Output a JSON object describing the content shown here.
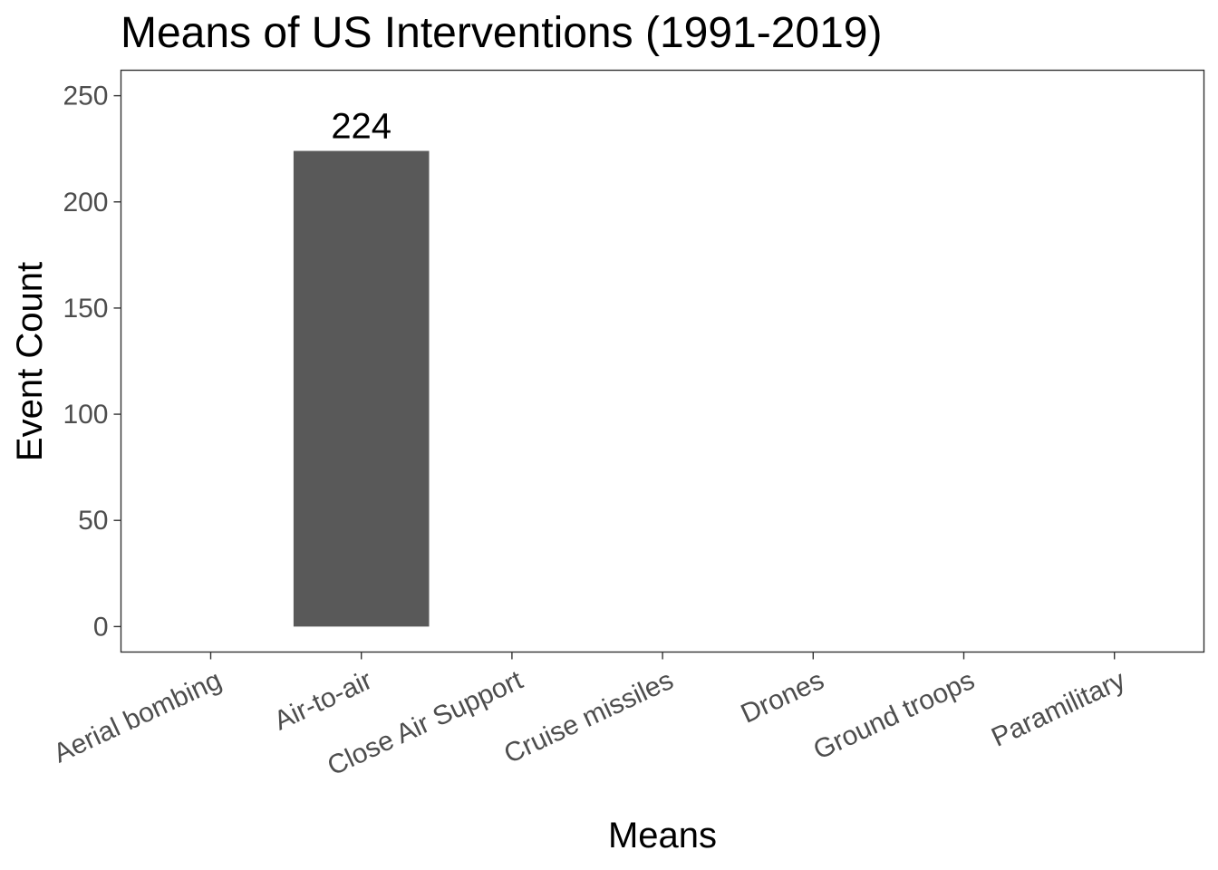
{
  "chart_data": {
    "type": "bar",
    "title": "Means of US Interventions (1991-2019)",
    "xlabel": "Means",
    "ylabel": "Event Count",
    "categories": [
      "Aerial bombing",
      "Air-to-air",
      "Close Air Support",
      "Cruise missiles",
      "Drones",
      "Ground troops",
      "Paramilitary"
    ],
    "values": [
      null,
      224,
      null,
      null,
      null,
      null,
      null
    ],
    "data_labels": [
      null,
      "224",
      null,
      null,
      null,
      null,
      null
    ],
    "ylim": [
      -12,
      262
    ],
    "yticks": [
      0,
      50,
      100,
      150,
      200,
      250
    ],
    "ytick_labels": [
      "0",
      "50",
      "100",
      "150",
      "200",
      "250"
    ],
    "grid": false,
    "bar_color": "#595959",
    "panel_border_color": "#333333"
  }
}
